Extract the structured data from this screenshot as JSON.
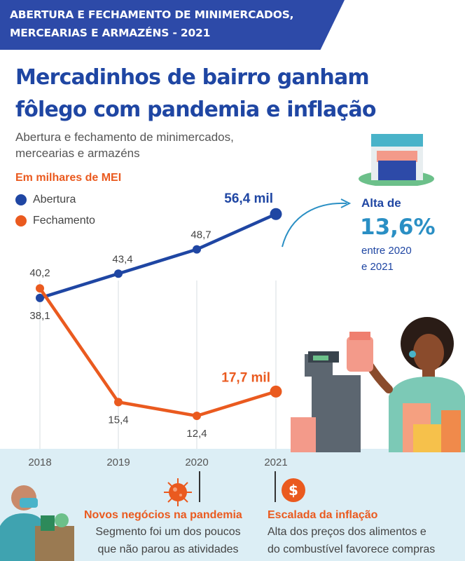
{
  "banner": {
    "line1": "ABERTURA E FECHAMENTO DE MINIMERCADOS,",
    "line2": "MERCEARIAS E ARMAZÉNS - 2021"
  },
  "headline": {
    "line1": "Mercadinhos de bairro ganham",
    "line2": "fôlego com pandemia e inflação"
  },
  "subtitle": {
    "line1": "Abertura e fechamento de minimercados,",
    "line2": "mercearias e armazéns"
  },
  "unit_label": "Em milhares de MEI",
  "callout": {
    "head": "Alta de",
    "value": "13,6%",
    "line1": "entre 2020",
    "line2": "e 2021"
  },
  "colors": {
    "abertura": "#1f46a3",
    "fechamento": "#ea5a1f",
    "banner": "#2d4aa8",
    "panel": "#dceef5"
  },
  "chart_data": {
    "type": "line",
    "categories": [
      "2018",
      "2019",
      "2020",
      "2021"
    ],
    "series": [
      {
        "name": "Abertura",
        "values": [
          38.1,
          43.4,
          48.7,
          56.4
        ],
        "labels": [
          "38,1",
          "43,4",
          "48,7",
          "56,4 mil"
        ]
      },
      {
        "name": "Fechamento",
        "values": [
          40.2,
          15.4,
          12.4,
          17.7
        ],
        "labels": [
          "40,2",
          "15,4",
          "12,4",
          "17,7 mil"
        ]
      }
    ],
    "grid": "vertical",
    "legend": "top-left"
  },
  "bottom": {
    "card1": {
      "title": "Novos negócios na pandemia",
      "line1": "Segmento foi um dos poucos",
      "line2": "que não parou as atividades",
      "icon": "virus-icon"
    },
    "card2": {
      "title": "Escalada da inflação",
      "line1": "Alta dos preços dos alimentos e",
      "line2": "do combustível favorece compras",
      "icon": "dollar-icon"
    }
  }
}
